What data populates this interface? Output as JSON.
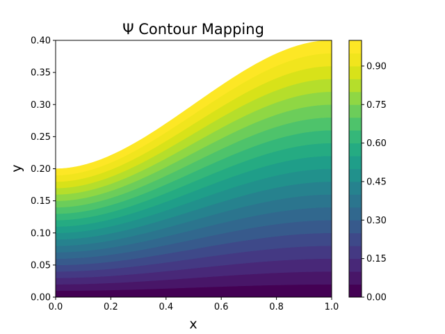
{
  "chart_data": {
    "type": "contourf",
    "title": "Ψ Contour Mapping",
    "xlabel": "x",
    "ylabel": "y",
    "xlim": [
      0.0,
      1.0
    ],
    "ylim": [
      0.0,
      0.4
    ],
    "x_ticks": [
      "0.0",
      "0.2",
      "0.4",
      "0.6",
      "0.8",
      "1.0"
    ],
    "y_ticks": [
      "0.00",
      "0.05",
      "0.10",
      "0.15",
      "0.20",
      "0.25",
      "0.30",
      "0.35",
      "0.40"
    ],
    "field": {
      "description": "psi = y / h(x), upper boundary h(x) = 0.2 + 0.2*(3x^2 - 2x^3)",
      "levels": 22,
      "vmin": 0.0,
      "vmax": 1.0
    },
    "colorbar": {
      "ticks": [
        "0.00",
        "0.15",
        "0.30",
        "0.45",
        "0.60",
        "0.75",
        "0.90"
      ],
      "tick_values": [
        0.0,
        0.15,
        0.3,
        0.45,
        0.6,
        0.75,
        0.9
      ],
      "colormap": "viridis",
      "colors": [
        "#440154",
        "#481668",
        "#482878",
        "#443983",
        "#3e4989",
        "#375a8c",
        "#31688e",
        "#2b758e",
        "#26828e",
        "#21918c",
        "#1f9e89",
        "#25ab82",
        "#35b779",
        "#4ec36b",
        "#6ccd5a",
        "#8fd744",
        "#b5de2b",
        "#d8e219",
        "#f1e51d",
        "#fde725"
      ]
    }
  }
}
